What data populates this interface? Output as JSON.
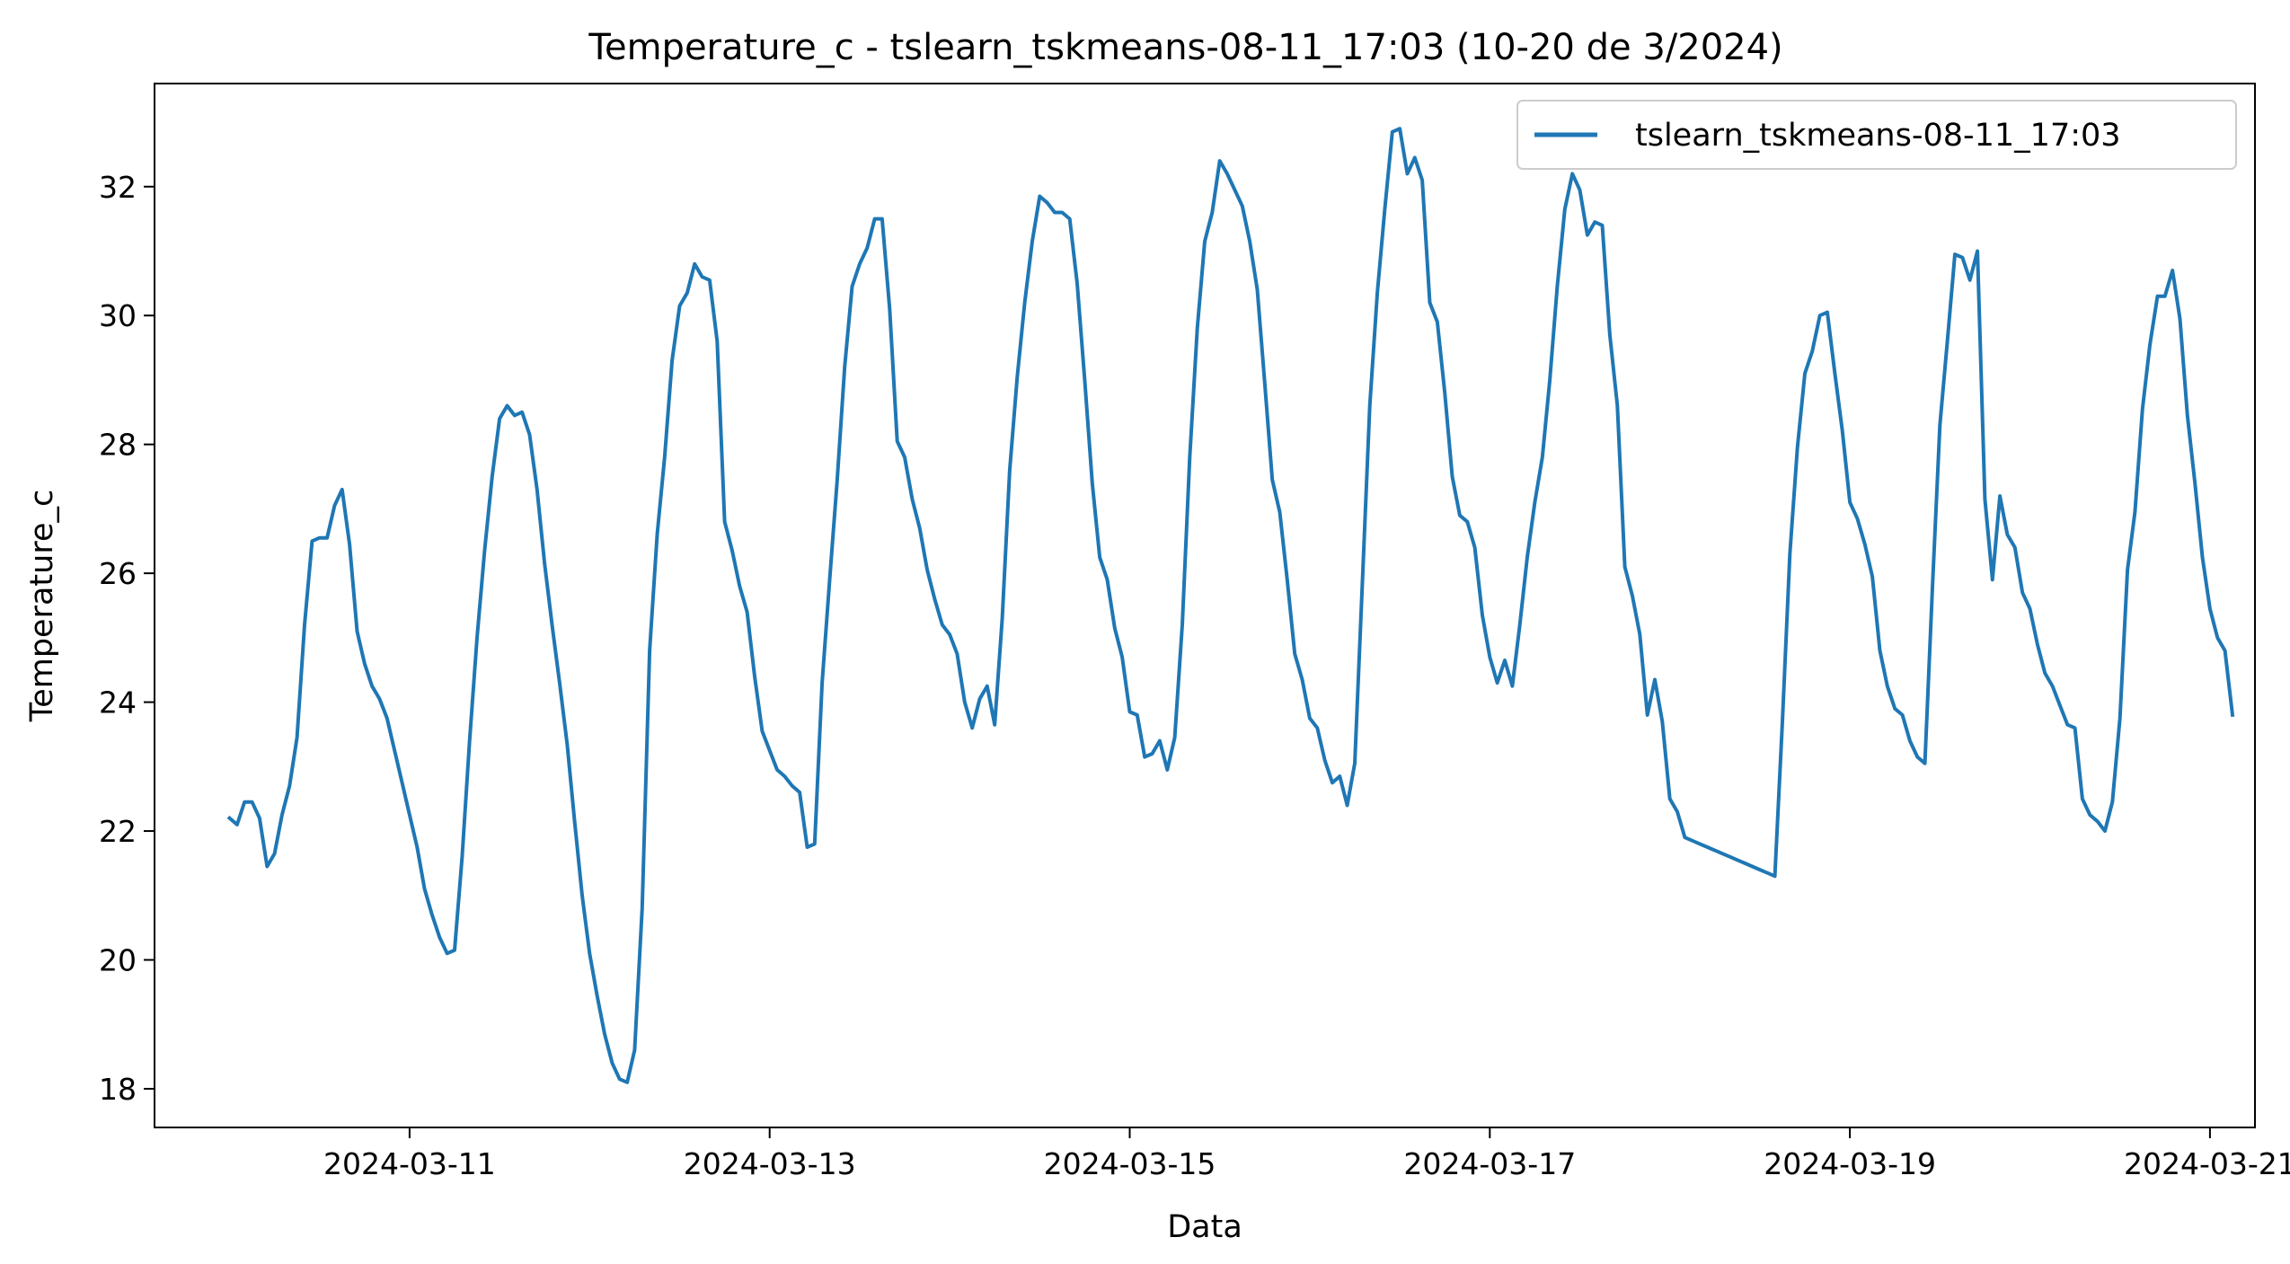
{
  "chart_data": {
    "type": "line",
    "title": "Temperature_c - tslearn_tskmeans-08-11_17:03 (10-20 de 3/2024)",
    "xlabel": "Data",
    "ylabel": "Temperature_c",
    "x_start": "2024-03-10T00:00",
    "x_step_hours": 1,
    "xlim": [
      "2024-03-09T14:00",
      "2024-03-21T06:00"
    ],
    "ylim": [
      17.4,
      33.6
    ],
    "x_ticks": [
      "2024-03-11",
      "2024-03-13",
      "2024-03-15",
      "2024-03-17",
      "2024-03-19",
      "2024-03-21"
    ],
    "y_ticks": [
      18,
      20,
      22,
      24,
      26,
      28,
      30,
      32
    ],
    "grid": false,
    "legend_position": "top-right",
    "series": [
      {
        "name": "tslearn_tskmeans-08-11_17:03",
        "color": "#1f77b4",
        "values": [
          22.2,
          22.1,
          22.45,
          22.45,
          22.2,
          21.45,
          21.65,
          22.25,
          22.7,
          23.45,
          25.2,
          26.5,
          26.55,
          26.55,
          27.05,
          27.3,
          26.45,
          25.1,
          24.6,
          24.25,
          24.05,
          23.75,
          23.25,
          22.75,
          22.25,
          21.75,
          21.1,
          20.7,
          20.35,
          20.1,
          20.15,
          21.6,
          23.4,
          25.0,
          26.35,
          27.5,
          28.4,
          28.6,
          28.45,
          28.5,
          28.15,
          27.3,
          26.15,
          25.2,
          24.3,
          23.35,
          22.15,
          21.0,
          20.1,
          19.45,
          18.85,
          18.4,
          18.15,
          18.1,
          18.6,
          20.8,
          24.8,
          26.6,
          27.8,
          29.3,
          30.15,
          30.35,
          30.8,
          30.6,
          30.55,
          29.6,
          26.8,
          26.35,
          25.8,
          25.4,
          24.4,
          23.55,
          23.25,
          22.95,
          22.85,
          22.7,
          22.6,
          21.75,
          21.8,
          24.3,
          25.9,
          27.45,
          29.2,
          30.45,
          30.8,
          31.05,
          31.5,
          31.5,
          30.1,
          28.05,
          27.8,
          27.15,
          26.7,
          26.05,
          25.6,
          25.2,
          25.05,
          24.75,
          24.0,
          23.6,
          24.05,
          24.25,
          23.65,
          25.3,
          27.6,
          29.05,
          30.2,
          31.15,
          31.85,
          31.75,
          31.6,
          31.6,
          31.5,
          30.5,
          29.0,
          27.4,
          26.25,
          25.9,
          25.15,
          24.7,
          23.85,
          23.8,
          23.15,
          23.2,
          23.4,
          22.95,
          23.45,
          25.2,
          27.8,
          29.8,
          31.15,
          31.6,
          32.4,
          32.2,
          31.95,
          31.7,
          31.15,
          30.4,
          28.95,
          27.45,
          26.95,
          25.9,
          24.75,
          24.35,
          23.75,
          23.6,
          23.1,
          22.75,
          22.85,
          22.4,
          23.05,
          25.8,
          28.6,
          30.35,
          31.65,
          32.85,
          32.9,
          32.2,
          32.45,
          32.1,
          30.2,
          29.9,
          28.8,
          27.5,
          26.9,
          26.8,
          26.4,
          25.35,
          24.7,
          24.3,
          24.65,
          24.25,
          25.2,
          26.25,
          27.1,
          27.8,
          29.0,
          30.45,
          31.65,
          32.2,
          31.95,
          31.25,
          31.45,
          31.4,
          29.7,
          28.6,
          26.1,
          25.65,
          25.05,
          23.8,
          24.35,
          23.7,
          22.5,
          22.3,
          21.9,
          21.85,
          21.8,
          21.75,
          21.7,
          21.65,
          21.6,
          21.55,
          21.5,
          21.45,
          21.4,
          21.35,
          21.3,
          23.7,
          26.3,
          27.95,
          29.1,
          29.45,
          30.0,
          30.05,
          29.1,
          28.2,
          27.1,
          26.85,
          26.45,
          25.95,
          24.8,
          24.25,
          23.9,
          23.8,
          23.4,
          23.15,
          23.05,
          25.75,
          28.3,
          29.6,
          30.95,
          30.9,
          30.55,
          31.0,
          27.15,
          25.9,
          27.2,
          26.6,
          26.4,
          25.7,
          25.45,
          24.9,
          24.45,
          24.25,
          23.95,
          23.65,
          23.6,
          22.5,
          22.25,
          22.15,
          22.0,
          22.45,
          23.75,
          26.05,
          26.95,
          28.55,
          29.55,
          30.3,
          30.3,
          30.7,
          29.95,
          28.45,
          27.4,
          26.25,
          25.45,
          25.0,
          24.8,
          23.8
        ]
      }
    ]
  }
}
